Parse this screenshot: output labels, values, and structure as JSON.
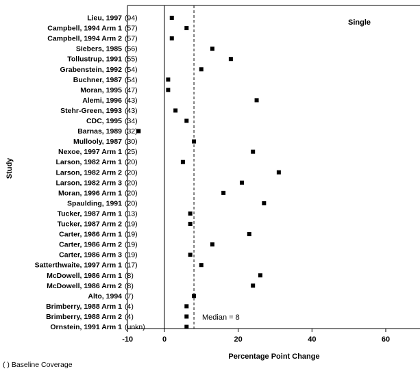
{
  "chart_data": {
    "type": "scatter",
    "title": "",
    "panel_label": "Single",
    "xlabel": "Percentage Point Change",
    "ylabel": "Study",
    "xlim": [
      -10,
      70
    ],
    "xticks": [
      -10,
      0,
      20,
      40,
      60
    ],
    "median_value": 8,
    "median_label": "Median = 8",
    "footnote": "( )  Baseline Coverage",
    "studies": [
      {
        "label": "Lieu, 1997",
        "coverage": "(94)",
        "value": 2
      },
      {
        "label": "Campbell, 1994 Arm 1",
        "coverage": "(57)",
        "value": 6
      },
      {
        "label": "Campbell, 1994 Arm 2",
        "coverage": "(57)",
        "value": 2
      },
      {
        "label": "Siebers, 1985",
        "coverage": "(56)",
        "value": 13
      },
      {
        "label": "Tollustrup, 1991",
        "coverage": "(55)",
        "value": 18
      },
      {
        "label": "Grabenstein, 1992",
        "coverage": "(54)",
        "value": 10
      },
      {
        "label": "Buchner, 1987",
        "coverage": "(54)",
        "value": 1
      },
      {
        "label": "Moran, 1995",
        "coverage": "(47)",
        "value": 1
      },
      {
        "label": "Alemi, 1996",
        "coverage": "(43)",
        "value": 25
      },
      {
        "label": "Stehr-Green, 1993",
        "coverage": "(43)",
        "value": 3
      },
      {
        "label": "CDC, 1995",
        "coverage": "(34)",
        "value": 6
      },
      {
        "label": "Barnas, 1989",
        "coverage": "(32)",
        "value": -7
      },
      {
        "label": "Mullooly, 1987",
        "coverage": "(30)",
        "value": 8
      },
      {
        "label": "Nexoe, 1997 Arm 1",
        "coverage": "(25)",
        "value": 24
      },
      {
        "label": "Larson, 1982 Arm 1",
        "coverage": "(20)",
        "value": 5
      },
      {
        "label": "Larson, 1982 Arm 2",
        "coverage": "(20)",
        "value": 31
      },
      {
        "label": "Larson, 1982 Arm 3",
        "coverage": "(20)",
        "value": 21
      },
      {
        "label": "Moran, 1996 Arm 1",
        "coverage": "(20)",
        "value": 16
      },
      {
        "label": "Spaulding, 1991",
        "coverage": "(20)",
        "value": 27
      },
      {
        "label": "Tucker, 1987 Arm 1",
        "coverage": "(13)",
        "value": 7
      },
      {
        "label": "Tucker, 1987 Arm 2",
        "coverage": "(19)",
        "value": 7
      },
      {
        "label": "Carter, 1986 Arm 1",
        "coverage": "(19)",
        "value": 23
      },
      {
        "label": "Carter, 1986 Arm 2",
        "coverage": "(19)",
        "value": 13
      },
      {
        "label": "Carter, 1986 Arm 3",
        "coverage": "(19)",
        "value": 7
      },
      {
        "label": "Satterthwaite, 1997 Arm 1",
        "coverage": "(17)",
        "value": 10
      },
      {
        "label": "McDowell, 1986 Arm 1",
        "coverage": "(8)",
        "value": 26
      },
      {
        "label": "McDowell, 1986 Arm 2",
        "coverage": "(8)",
        "value": 24
      },
      {
        "label": "Alto, 1994",
        "coverage": "(7)",
        "value": 8
      },
      {
        "label": "Brimberry, 1988 Arm 1",
        "coverage": "(4)",
        "value": 6
      },
      {
        "label": "Brimberry, 1988 Arm 2",
        "coverage": "(4)",
        "value": 6
      },
      {
        "label": "Ornstein, 1991 Arm 1",
        "coverage": "(unkn)",
        "value": 6
      }
    ],
    "grid": false,
    "colors": {
      "marker": "#000000",
      "axis": "#000000"
    }
  }
}
